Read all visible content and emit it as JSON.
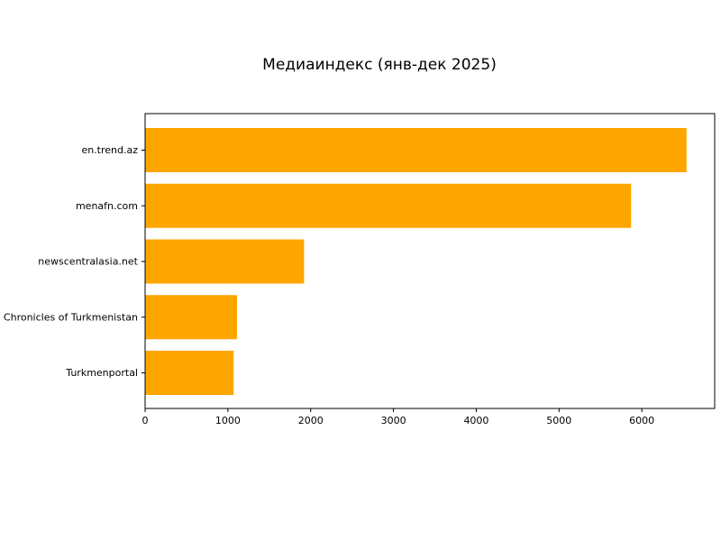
{
  "chart_data": {
    "type": "bar",
    "orientation": "horizontal",
    "title": "Медиаиндекс (янв-дек 2025)",
    "xlabel": "",
    "ylabel": "",
    "categories": [
      "en.trend.az",
      "menafn.com",
      "newscentralasia.net",
      "Chronicles of Turkmenistan",
      "Turkmenportal"
    ],
    "values": [
      6540,
      5870,
      1920,
      1110,
      1070
    ],
    "xlim": [
      0,
      6880
    ],
    "xticks": [
      0,
      1000,
      2000,
      3000,
      4000,
      5000,
      6000
    ],
    "grid": false,
    "bar_color": "#ffa500"
  }
}
